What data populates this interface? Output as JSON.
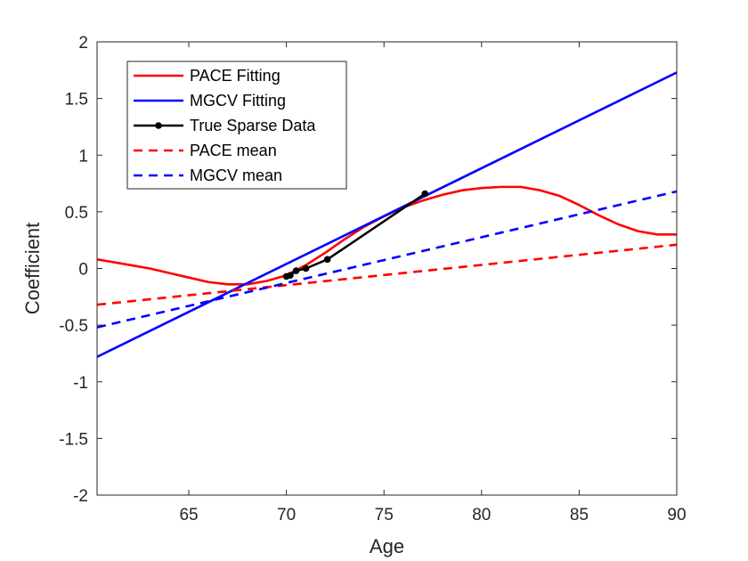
{
  "chart_data": {
    "type": "line",
    "xlabel": "Age",
    "ylabel": "Coefficient",
    "xlim": [
      60.3,
      90
    ],
    "ylim": [
      -2,
      2
    ],
    "x_ticks": [
      65,
      70,
      75,
      80,
      85,
      90
    ],
    "x_tick_labels": [
      "65",
      "70",
      "75",
      "80",
      "85",
      "90"
    ],
    "y_ticks": [
      -2,
      -1.5,
      -1,
      -0.5,
      0,
      0.5,
      1,
      1.5,
      2
    ],
    "y_tick_labels": [
      "-2",
      "-1.5",
      "-1",
      "-0.5",
      "0",
      "0.5",
      "1",
      "1.5",
      "2"
    ],
    "grid": false,
    "legend_position": "top-left",
    "series": [
      {
        "name": "PACE Fitting",
        "color": "#ff0000",
        "style": "solid",
        "x": [
          60.3,
          61,
          62,
          63,
          64,
          65,
          66,
          67,
          68,
          69,
          70,
          71,
          72,
          73,
          74,
          75,
          76,
          77,
          78,
          79,
          80,
          81,
          82,
          83,
          84,
          85,
          86,
          87,
          88,
          89,
          90
        ],
        "y": [
          0.08,
          0.06,
          0.03,
          0.0,
          -0.04,
          -0.08,
          -0.12,
          -0.14,
          -0.14,
          -0.11,
          -0.06,
          0.03,
          0.14,
          0.26,
          0.37,
          0.46,
          0.54,
          0.6,
          0.65,
          0.69,
          0.71,
          0.72,
          0.72,
          0.69,
          0.64,
          0.56,
          0.47,
          0.39,
          0.33,
          0.3,
          0.3
        ]
      },
      {
        "name": "MGCV Fitting",
        "color": "#0000ff",
        "style": "solid",
        "x": [
          60.3,
          90
        ],
        "y": [
          -0.78,
          1.73
        ]
      },
      {
        "name": "True Sparse Data",
        "color": "#000000",
        "style": "solid-marker",
        "x": [
          70.0,
          70.2,
          70.5,
          71.0,
          72.1,
          77.1
        ],
        "y": [
          -0.07,
          -0.06,
          -0.02,
          0.0,
          0.08,
          0.66
        ]
      },
      {
        "name": "PACE mean",
        "color": "#ff0000",
        "style": "dashed",
        "x": [
          60.3,
          90
        ],
        "y": [
          -0.32,
          0.21
        ]
      },
      {
        "name": "MGCV mean",
        "color": "#0000ff",
        "style": "dashed",
        "x": [
          60.3,
          90
        ],
        "y": [
          -0.52,
          0.68
        ]
      }
    ]
  }
}
